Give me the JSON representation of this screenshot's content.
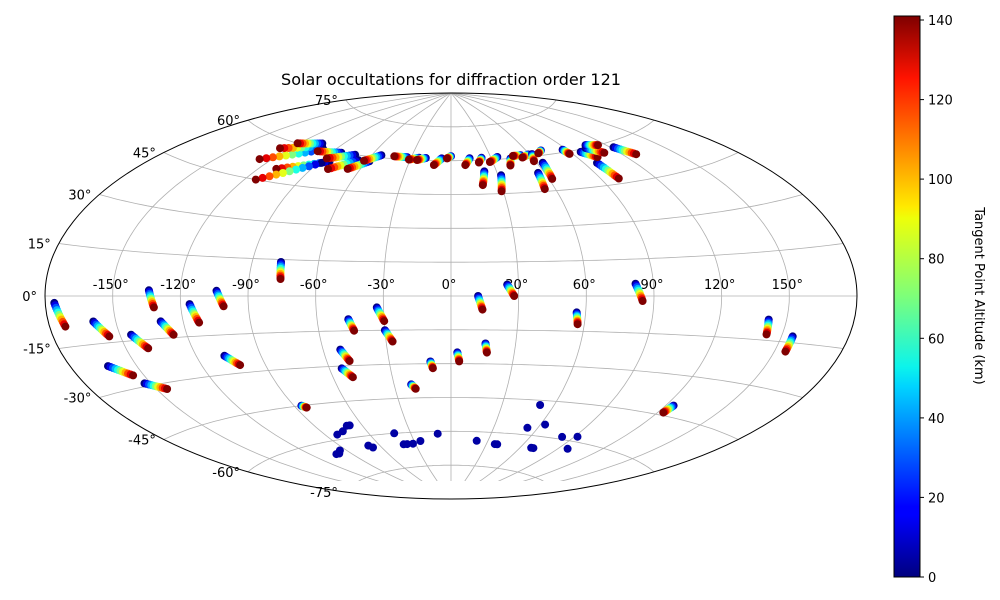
{
  "chart_data": {
    "type": "scatter",
    "projection": "aitoff/hammer-like ellipse, longitude -180..180, latitude -90..90",
    "title": "Solar occultations for diffraction order 121",
    "xlabel": "",
    "ylabel": "",
    "lon_tick_labels": [
      {
        "lon": -150,
        "label": "-150°"
      },
      {
        "lon": -120,
        "label": "-120°"
      },
      {
        "lon": -90,
        "label": "-90°"
      },
      {
        "lon": -60,
        "label": "-60°"
      },
      {
        "lon": -30,
        "label": "-30°"
      },
      {
        "lon": 0,
        "label": "0°"
      },
      {
        "lon": 30,
        "label": "30°"
      },
      {
        "lon": 60,
        "label": "60°"
      },
      {
        "lon": 90,
        "label": "90°"
      },
      {
        "lon": 120,
        "label": "120°"
      },
      {
        "lon": 150,
        "label": "150°"
      }
    ],
    "lat_tick_labels": [
      {
        "lat": 75,
        "label": "75°"
      },
      {
        "lat": 60,
        "label": "60°"
      },
      {
        "lat": 45,
        "label": "45°"
      },
      {
        "lat": 30,
        "label": "30°"
      },
      {
        "lat": 15,
        "label": "15°"
      },
      {
        "lat": 0,
        "label": "0°"
      },
      {
        "lat": -15,
        "label": "-15°"
      },
      {
        "lat": -30,
        "label": "-30°"
      },
      {
        "lat": -45,
        "label": "-45°"
      },
      {
        "lat": -60,
        "label": "-60°"
      },
      {
        "lat": -75,
        "label": "-75°"
      }
    ],
    "grid": true,
    "colorbar": {
      "label": "Tangent Point Altitude (km)",
      "range": [
        0,
        141
      ],
      "ticks": [
        "0",
        "20",
        "40",
        "60",
        "80",
        "100",
        "120",
        "140"
      ],
      "tick_values": [
        0,
        20,
        40,
        60,
        80,
        100,
        120,
        140
      ],
      "colormap": "jet"
    },
    "tracks": [
      {
        "start": [
          -176,
          -2
        ],
        "end": [
          -173,
          -9
        ],
        "alt_range": [
          0,
          141
        ]
      },
      {
        "start": [
          -160,
          -8
        ],
        "end": [
          -155,
          -13
        ],
        "alt_range": [
          0,
          141
        ]
      },
      {
        "start": [
          -145,
          -13
        ],
        "end": [
          -140,
          -18
        ],
        "alt_range": [
          0,
          141
        ]
      },
      {
        "start": [
          -163,
          -22
        ],
        "end": [
          -155,
          -26
        ],
        "alt_range": [
          0,
          141
        ]
      },
      {
        "start": [
          -153,
          -29
        ],
        "end": [
          -145,
          -32
        ],
        "alt_range": [
          0,
          141
        ]
      },
      {
        "start": [
          -134,
          2
        ],
        "end": [
          -132,
          -4
        ],
        "alt_range": [
          0,
          141
        ]
      },
      {
        "start": [
          -130,
          -9
        ],
        "end": [
          -126,
          -14
        ],
        "alt_range": [
          0,
          141
        ]
      },
      {
        "start": [
          -116,
          -3
        ],
        "end": [
          -113,
          -10
        ],
        "alt_range": [
          0,
          141
        ]
      },
      {
        "start": [
          -104,
          2
        ],
        "end": [
          -101,
          -4
        ],
        "alt_range": [
          0,
          141
        ]
      },
      {
        "start": [
          -107,
          -23
        ],
        "end": [
          -102,
          -27
        ],
        "alt_range": [
          0,
          141
        ]
      },
      {
        "start": [
          -77,
          14
        ],
        "end": [
          -76,
          7
        ],
        "alt_range": [
          0,
          141
        ]
      },
      {
        "start": [
          -46,
          -10
        ],
        "end": [
          -44,
          -15
        ],
        "alt_range": [
          0,
          141
        ]
      },
      {
        "start": [
          -52,
          -23
        ],
        "end": [
          -49,
          -28
        ],
        "alt_range": [
          0,
          141
        ]
      },
      {
        "start": [
          -54,
          -31
        ],
        "end": [
          -50,
          -35
        ],
        "alt_range": [
          0,
          141
        ]
      },
      {
        "start": [
          -33,
          -5
        ],
        "end": [
          -30,
          -11
        ],
        "alt_range": [
          0,
          141
        ]
      },
      {
        "start": [
          -30,
          -15
        ],
        "end": [
          -27,
          -20
        ],
        "alt_range": [
          0,
          141
        ]
      },
      {
        "start": [
          -10,
          -29
        ],
        "end": [
          -9,
          -32
        ],
        "alt_range": [
          0,
          141
        ]
      },
      {
        "start": [
          -21,
          -39
        ],
        "end": [
          -19,
          -41
        ],
        "alt_range": [
          0,
          141
        ]
      },
      {
        "start": [
          3,
          -25
        ],
        "end": [
          4,
          -29
        ],
        "alt_range": [
          0,
          141
        ]
      },
      {
        "start": [
          12,
          0
        ],
        "end": [
          14,
          -6
        ],
        "alt_range": [
          0,
          141
        ]
      },
      {
        "start": [
          16,
          -21
        ],
        "end": [
          17,
          -25
        ],
        "alt_range": [
          0,
          141
        ]
      },
      {
        "start": [
          25,
          5
        ],
        "end": [
          28,
          0
        ],
        "alt_range": [
          0,
          141
        ]
      },
      {
        "start": [
          56,
          -7
        ],
        "end": [
          57,
          -12
        ],
        "alt_range": [
          0,
          141
        ]
      },
      {
        "start": [
          82,
          5
        ],
        "end": [
          85,
          -2
        ],
        "alt_range": [
          0,
          141
        ]
      },
      {
        "start": [
          142,
          -8
        ],
        "end": [
          143,
          -13
        ],
        "alt_range": [
          0,
          141
        ]
      },
      {
        "start": [
          155,
          -13
        ],
        "end": [
          155,
          -18
        ],
        "alt_range": [
          0,
          141
        ]
      },
      {
        "start": [
          124,
          -41
        ],
        "end": [
          123,
          -44
        ],
        "alt_range": [
          0,
          141
        ]
      },
      {
        "start": [
          -86,
          -45
        ],
        "end": [
          -84,
          -46
        ],
        "alt_range": [
          0,
          141
        ]
      },
      {
        "start": [
          -84,
          56
        ],
        "end": [
          -110,
          50
        ],
        "alt_range": [
          0,
          141
        ]
      },
      {
        "start": [
          -88,
          55
        ],
        "end": [
          -114,
          45
        ],
        "alt_range": [
          0,
          141
        ]
      },
      {
        "start": [
          -98,
          60
        ],
        "end": [
          -127,
          52
        ],
        "alt_range": [
          0,
          141
        ]
      },
      {
        "start": [
          -102,
          61
        ],
        "end": [
          -126,
          57
        ],
        "alt_range": [
          0,
          141
        ]
      },
      {
        "start": [
          -105,
          62
        ],
        "end": [
          -121,
          60
        ],
        "alt_range": [
          0,
          141
        ]
      },
      {
        "start": [
          -83,
          60
        ],
        "end": [
          -100,
          59
        ],
        "alt_range": [
          0,
          141
        ]
      },
      {
        "start": [
          -72,
          60
        ],
        "end": [
          -88,
          57
        ],
        "alt_range": [
          0,
          141
        ]
      },
      {
        "start": [
          -66,
          58
        ],
        "end": [
          -80,
          53
        ],
        "alt_range": [
          0,
          141
        ]
      },
      {
        "start": [
          -58,
          58
        ],
        "end": [
          -68,
          54
        ],
        "alt_range": [
          0,
          141
        ]
      },
      {
        "start": [
          -53,
          61
        ],
        "end": [
          -62,
          58
        ],
        "alt_range": [
          0,
          141
        ]
      },
      {
        "start": [
          -33,
          61
        ],
        "end": [
          -43,
          61
        ],
        "alt_range": [
          0,
          141
        ]
      },
      {
        "start": [
          -24,
          61
        ],
        "end": [
          -31,
          60
        ],
        "alt_range": [
          0,
          141
        ]
      },
      {
        "start": [
          -19,
          61
        ],
        "end": [
          -25,
          60
        ],
        "alt_range": [
          0,
          141
        ]
      },
      {
        "start": [
          -7,
          61
        ],
        "end": [
          -12,
          58
        ],
        "alt_range": [
          0,
          141
        ]
      },
      {
        "start": [
          0,
          62
        ],
        "end": [
          -3,
          61
        ],
        "alt_range": [
          0,
          141
        ]
      },
      {
        "start": [
          14,
          61
        ],
        "end": [
          10,
          58
        ],
        "alt_range": [
          0,
          141
        ]
      },
      {
        "start": [
          22,
          55
        ],
        "end": [
          19,
          49
        ],
        "alt_range": [
          0,
          141
        ]
      },
      {
        "start": [
          23,
          61
        ],
        "end": [
          20,
          59
        ],
        "alt_range": [
          0,
          141
        ]
      },
      {
        "start": [
          32,
          53
        ],
        "end": [
          29,
          46
        ],
        "alt_range": [
          0,
          141
        ]
      },
      {
        "start": [
          35,
          61
        ],
        "end": [
          28,
          59
        ],
        "alt_range": [
          0,
          141
        ]
      },
      {
        "start": [
          44,
          60
        ],
        "end": [
          41,
          57
        ],
        "alt_range": [
          0,
          141
        ]
      },
      {
        "start": [
          53,
          61
        ],
        "end": [
          47,
          61
        ],
        "alt_range": [
          0,
          141
        ]
      },
      {
        "start": [
          56,
          53
        ],
        "end": [
          54,
          46
        ],
        "alt_range": [
          0,
          141
        ]
      },
      {
        "start": [
          59,
          61
        ],
        "end": [
          53,
          60
        ],
        "alt_range": [
          0,
          141
        ]
      },
      {
        "start": [
          64,
          57
        ],
        "end": [
          62,
          50
        ],
        "alt_range": [
          0,
          141
        ]
      },
      {
        "start": [
          62,
          61
        ],
        "end": [
          59,
          58
        ],
        "alt_range": [
          0,
          141
        ]
      },
      {
        "start": [
          71,
          62
        ],
        "end": [
          67,
          61
        ],
        "alt_range": [
          0,
          141
        ]
      },
      {
        "start": [
          87,
          61
        ],
        "end": [
          88,
          59
        ],
        "alt_range": [
          0,
          141
        ]
      },
      {
        "start": [
          98,
          54
        ],
        "end": [
          100,
          47
        ],
        "alt_range": [
          0,
          141
        ]
      },
      {
        "start": [
          97,
          59
        ],
        "end": [
          103,
          56
        ],
        "alt_range": [
          0,
          141
        ]
      },
      {
        "start": [
          104,
          60
        ],
        "end": [
          111,
          57
        ],
        "alt_range": [
          0,
          141
        ]
      },
      {
        "start": [
          107,
          61
        ],
        "end": [
          115,
          60
        ],
        "alt_range": [
          0,
          141
        ]
      },
      {
        "start": [
          122,
          58
        ],
        "end": [
          128,
          54
        ],
        "alt_range": [
          0,
          141
        ]
      }
    ],
    "points": [
      {
        "lon": -102,
        "lat": -65,
        "alt": 5
      },
      {
        "lon": -99,
        "lat": -65,
        "alt": 5
      },
      {
        "lon": -95,
        "lat": -64,
        "alt": 5
      },
      {
        "lon": -82,
        "lat": -58,
        "alt": 5
      },
      {
        "lon": -76,
        "lat": -57,
        "alt": 5
      },
      {
        "lon": -70,
        "lat": -55,
        "alt": 5
      },
      {
        "lon": -68,
        "lat": -55,
        "alt": 5
      },
      {
        "lon": -69,
        "lat": -64,
        "alt": 5
      },
      {
        "lon": -67,
        "lat": -65,
        "alt": 5
      },
      {
        "lon": -42,
        "lat": -60,
        "alt": 5
      },
      {
        "lon": -40,
        "lat": -65,
        "alt": 5
      },
      {
        "lon": -37,
        "lat": -65,
        "alt": 5
      },
      {
        "lon": -32,
        "lat": -65,
        "alt": 5
      },
      {
        "lon": -25,
        "lat": -64,
        "alt": 5
      },
      {
        "lon": -10,
        "lat": -61,
        "alt": 5
      },
      {
        "lon": 21,
        "lat": -64,
        "alt": 5
      },
      {
        "lon": 37,
        "lat": -65,
        "alt": 5
      },
      {
        "lon": 39,
        "lat": -65,
        "alt": 5
      },
      {
        "lon": 52,
        "lat": -47,
        "alt": 5
      },
      {
        "lon": 53,
        "lat": -57,
        "alt": 5
      },
      {
        "lon": 63,
        "lat": -55,
        "alt": 5
      },
      {
        "lon": 69,
        "lat": -65,
        "alt": 5
      },
      {
        "lon": 71,
        "lat": -65,
        "alt": 5
      },
      {
        "lon": 82,
        "lat": -59,
        "alt": 5
      },
      {
        "lon": 92,
        "lat": -58,
        "alt": 5
      },
      {
        "lon": 97,
        "lat": -63,
        "alt": 5
      }
    ]
  }
}
